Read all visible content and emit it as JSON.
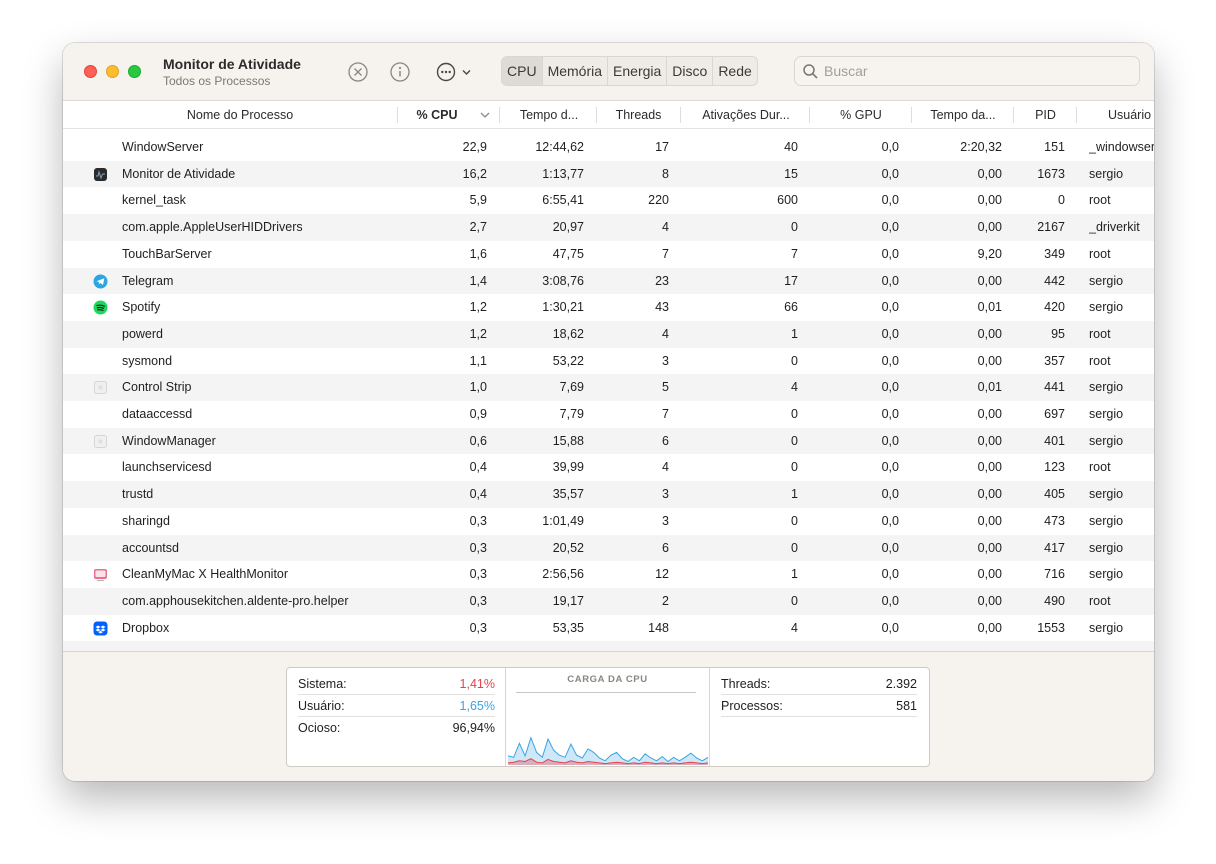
{
  "window": {
    "title": "Monitor de Atividade",
    "subtitle": "Todos os Processos"
  },
  "toolbar": {
    "tabs": [
      "CPU",
      "Memória",
      "Energia",
      "Disco",
      "Rede"
    ],
    "active_tab": "CPU",
    "search_placeholder": "Buscar"
  },
  "columns": [
    "Nome do Processo",
    "% CPU",
    "Tempo d...",
    "Threads",
    "Ativações Dur...",
    "% GPU",
    "Tempo da...",
    "PID",
    "Usuário"
  ],
  "processes": [
    {
      "name": "WindowServer",
      "icon": "none",
      "cpu": "22,9",
      "time": "12:44,62",
      "threads": "17",
      "wakeups": "40",
      "gpu": "0,0",
      "gpu_time": "2:20,32",
      "pid": "151",
      "user": "_windowserver"
    },
    {
      "name": "Monitor de Atividade",
      "icon": "activity-monitor-icon",
      "cpu": "16,2",
      "time": "1:13,77",
      "threads": "8",
      "wakeups": "15",
      "gpu": "0,0",
      "gpu_time": "0,00",
      "pid": "1673",
      "user": "sergio"
    },
    {
      "name": "kernel_task",
      "icon": "none",
      "cpu": "5,9",
      "time": "6:55,41",
      "threads": "220",
      "wakeups": "600",
      "gpu": "0,0",
      "gpu_time": "0,00",
      "pid": "0",
      "user": "root"
    },
    {
      "name": "com.apple.AppleUserHIDDrivers",
      "icon": "none",
      "cpu": "2,7",
      "time": "20,97",
      "threads": "4",
      "wakeups": "0",
      "gpu": "0,0",
      "gpu_time": "0,00",
      "pid": "2167",
      "user": "_driverkit"
    },
    {
      "name": "TouchBarServer",
      "icon": "none",
      "cpu": "1,6",
      "time": "47,75",
      "threads": "7",
      "wakeups": "7",
      "gpu": "0,0",
      "gpu_time": "9,20",
      "pid": "349",
      "user": "root"
    },
    {
      "name": "Telegram",
      "icon": "telegram-icon",
      "cpu": "1,4",
      "time": "3:08,76",
      "threads": "23",
      "wakeups": "17",
      "gpu": "0,0",
      "gpu_time": "0,00",
      "pid": "442",
      "user": "sergio"
    },
    {
      "name": "Spotify",
      "icon": "spotify-icon",
      "cpu": "1,2",
      "time": "1:30,21",
      "threads": "43",
      "wakeups": "66",
      "gpu": "0,0",
      "gpu_time": "0,01",
      "pid": "420",
      "user": "sergio"
    },
    {
      "name": "powerd",
      "icon": "none",
      "cpu": "1,2",
      "time": "18,62",
      "threads": "4",
      "wakeups": "1",
      "gpu": "0,0",
      "gpu_time": "0,00",
      "pid": "95",
      "user": "root"
    },
    {
      "name": "sysmond",
      "icon": "none",
      "cpu": "1,1",
      "time": "53,22",
      "threads": "3",
      "wakeups": "0",
      "gpu": "0,0",
      "gpu_time": "0,00",
      "pid": "357",
      "user": "root"
    },
    {
      "name": "Control Strip",
      "icon": "generic-app-icon",
      "cpu": "1,0",
      "time": "7,69",
      "threads": "5",
      "wakeups": "4",
      "gpu": "0,0",
      "gpu_time": "0,01",
      "pid": "441",
      "user": "sergio"
    },
    {
      "name": "dataaccessd",
      "icon": "none",
      "cpu": "0,9",
      "time": "7,79",
      "threads": "7",
      "wakeups": "0",
      "gpu": "0,0",
      "gpu_time": "0,00",
      "pid": "697",
      "user": "sergio"
    },
    {
      "name": "WindowManager",
      "icon": "generic-app-icon",
      "cpu": "0,6",
      "time": "15,88",
      "threads": "6",
      "wakeups": "0",
      "gpu": "0,0",
      "gpu_time": "0,00",
      "pid": "401",
      "user": "sergio"
    },
    {
      "name": "launchservicesd",
      "icon": "none",
      "cpu": "0,4",
      "time": "39,99",
      "threads": "4",
      "wakeups": "0",
      "gpu": "0,0",
      "gpu_time": "0,00",
      "pid": "123",
      "user": "root"
    },
    {
      "name": "trustd",
      "icon": "none",
      "cpu": "0,4",
      "time": "35,57",
      "threads": "3",
      "wakeups": "1",
      "gpu": "0,0",
      "gpu_time": "0,00",
      "pid": "405",
      "user": "sergio"
    },
    {
      "name": "sharingd",
      "icon": "none",
      "cpu": "0,3",
      "time": "1:01,49",
      "threads": "3",
      "wakeups": "0",
      "gpu": "0,0",
      "gpu_time": "0,00",
      "pid": "473",
      "user": "sergio"
    },
    {
      "name": "accountsd",
      "icon": "none",
      "cpu": "0,3",
      "time": "20,52",
      "threads": "6",
      "wakeups": "0",
      "gpu": "0,0",
      "gpu_time": "0,00",
      "pid": "417",
      "user": "sergio"
    },
    {
      "name": "CleanMyMac X HealthMonitor",
      "icon": "cleanmymac-icon",
      "cpu": "0,3",
      "time": "2:56,56",
      "threads": "12",
      "wakeups": "1",
      "gpu": "0,0",
      "gpu_time": "0,00",
      "pid": "716",
      "user": "sergio"
    },
    {
      "name": "com.apphousekitchen.aldente-pro.helper",
      "icon": "none",
      "cpu": "0,3",
      "time": "19,17",
      "threads": "2",
      "wakeups": "0",
      "gpu": "0,0",
      "gpu_time": "0,00",
      "pid": "490",
      "user": "root"
    },
    {
      "name": "Dropbox",
      "icon": "dropbox-icon",
      "cpu": "0,3",
      "time": "53,35",
      "threads": "148",
      "wakeups": "4",
      "gpu": "0,0",
      "gpu_time": "0,00",
      "pid": "1553",
      "user": "sergio"
    }
  ],
  "summary": {
    "sistema_label": "Sistema:",
    "sistema_value": "1,41%",
    "usuario_label": "Usuário:",
    "usuario_value": "1,65%",
    "ocioso_label": "Ocioso:",
    "ocioso_value": "96,94%",
    "graph_title": "CARGA DA CPU",
    "threads_label": "Threads:",
    "threads_value": "2.392",
    "processos_label": "Processos:",
    "processos_value": "581",
    "colors": {
      "sistema": "#e8414e",
      "usuario": "#3aa3e3"
    }
  },
  "cpu_load_graph": {
    "system_pct": [
      3,
      4,
      6,
      5,
      9,
      4,
      3,
      8,
      5,
      4,
      3,
      6,
      4,
      3,
      5,
      4,
      3,
      2,
      3,
      4,
      3,
      2,
      3,
      2,
      4,
      3,
      2,
      3,
      2,
      3,
      2,
      3,
      4,
      3,
      2,
      3
    ],
    "user_pct": [
      10,
      7,
      25,
      8,
      30,
      14,
      8,
      29,
      16,
      10,
      8,
      24,
      10,
      7,
      18,
      14,
      7,
      4,
      11,
      14,
      6,
      3,
      8,
      4,
      12,
      7,
      4,
      9,
      3,
      8,
      4,
      8,
      13,
      7,
      4,
      8
    ]
  }
}
